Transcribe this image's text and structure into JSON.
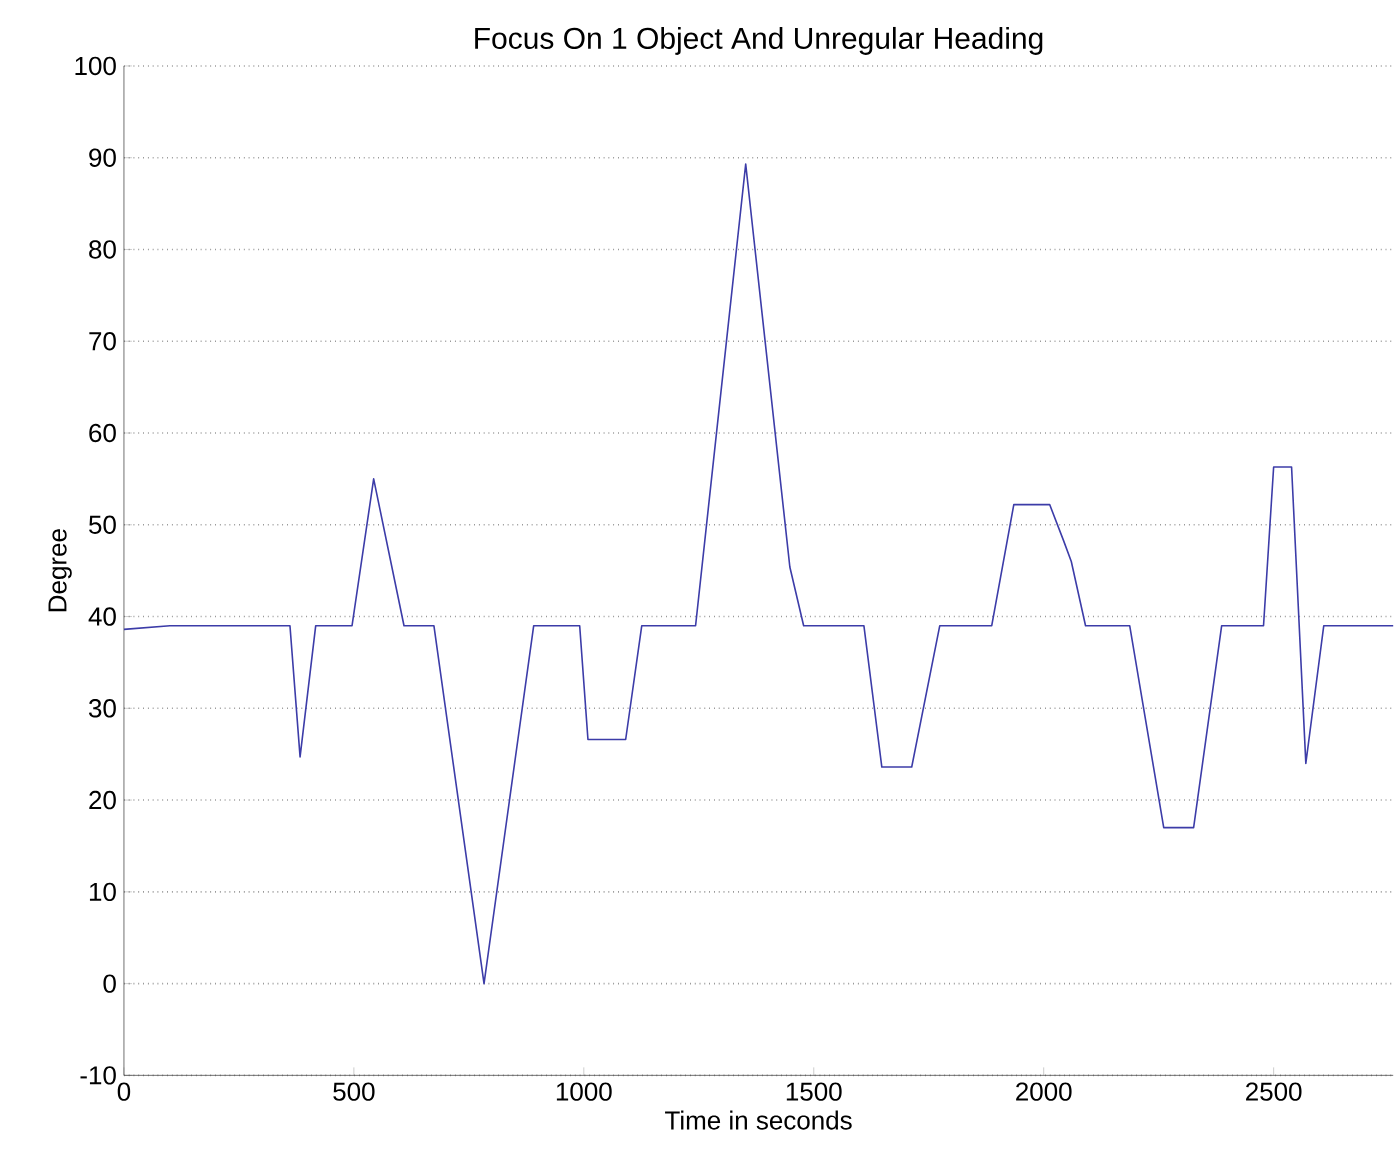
{
  "chart_data": {
    "type": "line",
    "title": "Focus On 1 Object And Unregular Heading",
    "xlabel": "Time in seconds",
    "ylabel": "Degree",
    "xlim": [
      0,
      2760
    ],
    "ylim": [
      -10,
      100
    ],
    "xticks": [
      0,
      500,
      1000,
      1500,
      2000,
      2500
    ],
    "yticks": [
      -10,
      0,
      10,
      20,
      30,
      40,
      50,
      60,
      70,
      80,
      90,
      100
    ],
    "grid": "y",
    "marker": "none",
    "line_style": "solid",
    "series": [
      {
        "color": "#3c3ca8",
        "x": [
          0,
          100,
          361,
          383,
          417,
          496,
          543,
          609,
          674,
          783,
          891,
          991,
          1009,
          1091,
          1126,
          1243,
          1352,
          1448,
          1478,
          1609,
          1648,
          1713,
          1774,
          1887,
          1935,
          2013,
          2043,
          2060,
          2091,
          2187,
          2261,
          2326,
          2387,
          2478,
          2500,
          2539,
          2570,
          2609,
          2760
        ],
        "values": [
          38.6,
          39,
          39,
          24.7,
          39,
          39,
          55,
          39,
          39,
          0,
          39,
          39,
          26.6,
          26.6,
          39,
          39,
          89.3,
          45.4,
          39,
          39,
          23.6,
          23.6,
          39,
          39,
          52.2,
          52.2,
          48.3,
          46,
          39,
          39,
          17,
          17,
          39,
          39,
          56.3,
          56.3,
          24,
          39,
          39
        ]
      }
    ]
  }
}
